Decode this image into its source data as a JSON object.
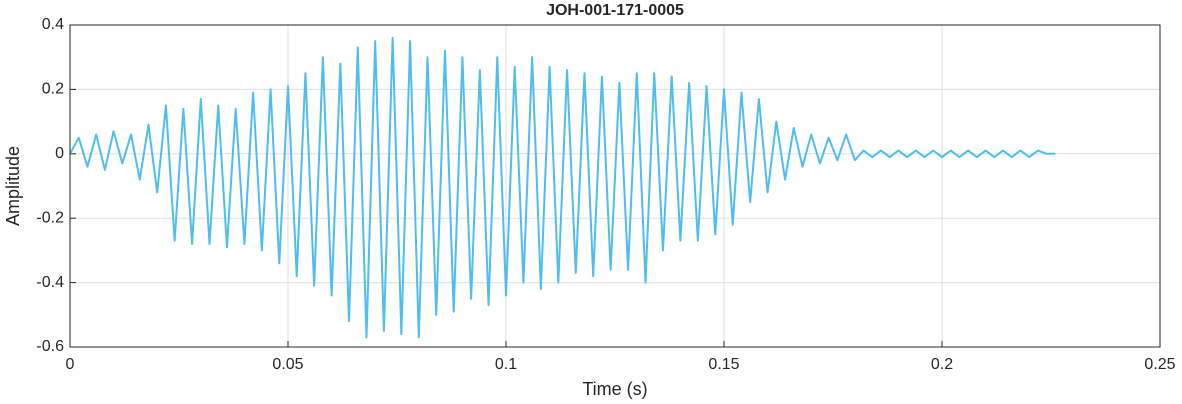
{
  "chart_data": {
    "type": "line",
    "title": "JOH-001-171-0005",
    "x_label": "Time (s)",
    "y_label": "Amplitude",
    "series": [
      {
        "color": "#4dbeee",
        "x": [
          0,
          0.002,
          0.004,
          0.006,
          0.008,
          0.01,
          0.012,
          0.014,
          0.016,
          0.018,
          0.02,
          0.022,
          0.024,
          0.026,
          0.028,
          0.03,
          0.032,
          0.034,
          0.036,
          0.038,
          0.04,
          0.042,
          0.044,
          0.046,
          0.048,
          0.05,
          0.052,
          0.054,
          0.056,
          0.058,
          0.06,
          0.062,
          0.064,
          0.066,
          0.068,
          0.07,
          0.072,
          0.074,
          0.076,
          0.078,
          0.08,
          0.082,
          0.084,
          0.086,
          0.088,
          0.09,
          0.092,
          0.094,
          0.096,
          0.098,
          0.1,
          0.102,
          0.104,
          0.106,
          0.108,
          0.11,
          0.112,
          0.114,
          0.116,
          0.118,
          0.12,
          0.122,
          0.124,
          0.126,
          0.128,
          0.13,
          0.132,
          0.134,
          0.136,
          0.138,
          0.14,
          0.142,
          0.144,
          0.146,
          0.148,
          0.15,
          0.152,
          0.154,
          0.156,
          0.158,
          0.16,
          0.162,
          0.164,
          0.166,
          0.168,
          0.17,
          0.172,
          0.174,
          0.176,
          0.178,
          0.18,
          0.182,
          0.184,
          0.186,
          0.188,
          0.19,
          0.192,
          0.194,
          0.196,
          0.198,
          0.2,
          0.202,
          0.204,
          0.206,
          0.208,
          0.21,
          0.212,
          0.214,
          0.216,
          0.218,
          0.22,
          0.222,
          0.224,
          0.226
        ],
        "values": [
          0,
          0.05,
          -0.04,
          0.06,
          -0.05,
          0.07,
          -0.03,
          0.06,
          -0.08,
          0.09,
          -0.12,
          0.15,
          -0.27,
          0.14,
          -0.28,
          0.17,
          -0.28,
          0.15,
          -0.29,
          0.14,
          -0.28,
          0.19,
          -0.3,
          0.2,
          -0.34,
          0.21,
          -0.38,
          0.25,
          -0.41,
          0.3,
          -0.44,
          0.28,
          -0.52,
          0.33,
          -0.57,
          0.35,
          -0.55,
          0.36,
          -0.56,
          0.35,
          -0.57,
          0.3,
          -0.5,
          0.32,
          -0.49,
          0.3,
          -0.45,
          0.26,
          -0.47,
          0.3,
          -0.44,
          0.27,
          -0.4,
          0.3,
          -0.42,
          0.27,
          -0.4,
          0.26,
          -0.37,
          0.25,
          -0.38,
          0.24,
          -0.36,
          0.22,
          -0.36,
          0.25,
          -0.4,
          0.25,
          -0.3,
          0.24,
          -0.27,
          0.22,
          -0.27,
          0.21,
          -0.25,
          0.2,
          -0.22,
          0.19,
          -0.15,
          0.17,
          -0.12,
          0.1,
          -0.08,
          0.08,
          -0.04,
          0.06,
          -0.03,
          0.05,
          -0.02,
          0.06,
          -0.02,
          0.01,
          -0.01,
          0.01,
          -0.01,
          0.01,
          -0.01,
          0.01,
          -0.01,
          0.01,
          -0.01,
          0.01,
          -0.01,
          0.01,
          -0.01,
          0.01,
          -0.01,
          0.01,
          -0.01,
          0.01,
          -0.01,
          0.01,
          0,
          0
        ]
      }
    ],
    "xlim": [
      0,
      0.25
    ],
    "xticks": [
      0,
      0.05,
      0.1,
      0.15,
      0.2,
      0.25
    ],
    "ylim": [
      -0.6,
      0.4
    ],
    "yticks": [
      -0.6,
      -0.4,
      -0.2,
      0,
      0.2,
      0.4
    ],
    "grid": true
  }
}
